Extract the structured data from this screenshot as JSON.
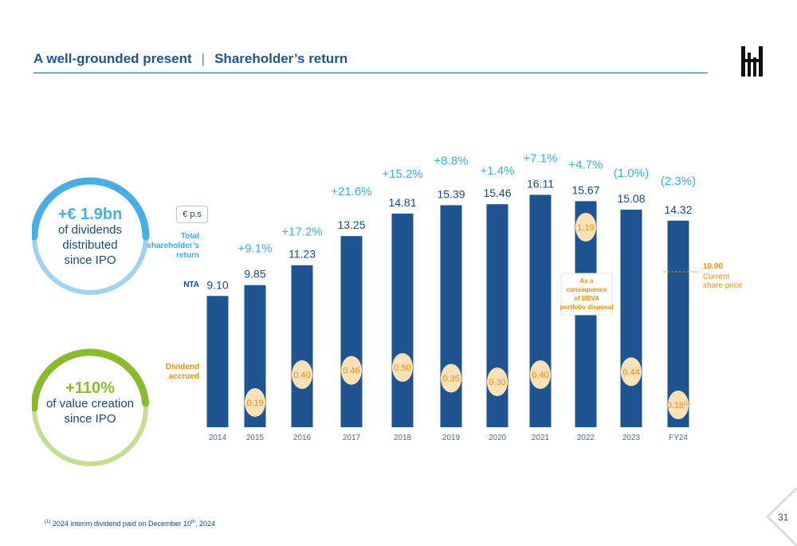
{
  "header": {
    "title": "A well-grounded present",
    "separator": "|",
    "subtitle": "Shareholder’s return"
  },
  "circles": [
    {
      "big": "+€ 1.9bn",
      "lines": [
        "of dividends",
        "distributed",
        "since IPO"
      ],
      "color": "#4aaee3",
      "light": "#9fd3f1"
    },
    {
      "big": "+110%",
      "lines": [
        "of value creation",
        "since IPO"
      ],
      "color": "#8cba2e",
      "light": "#c6de93"
    }
  ],
  "labels": {
    "unit": "€ p.s",
    "total_return": [
      "Total",
      "shareholder’s",
      "return"
    ],
    "nta": "NTA",
    "dividend": [
      "Dividend",
      "accrued"
    ],
    "annotation": [
      "As a",
      "consequence",
      "of BBVA",
      "portfolio disposal"
    ],
    "share_price_value": "10.00",
    "share_price_text": [
      "Current",
      "share price"
    ]
  },
  "colors": {
    "bar": "#1e5591",
    "bubble": "#fbe1b8",
    "bubble_text": "#e8900b",
    "growth": "#39aee0",
    "nta_text": "#1a4a7a",
    "orange": "#e8900b"
  },
  "chart_data": {
    "type": "bar",
    "categories": [
      "2014",
      "2015",
      "2016",
      "2017",
      "2018",
      "2019",
      "2020",
      "2021",
      "2022",
      "2023",
      "FY24"
    ],
    "series": [
      {
        "name": "NTA",
        "values": [
          9.1,
          9.85,
          11.23,
          13.25,
          14.81,
          15.39,
          15.46,
          16.11,
          15.67,
          15.08,
          14.32
        ]
      }
    ],
    "nta_labels": [
      "9.10",
      "9.85",
      "11.23",
      "13.25",
      "14.81",
      "15.39",
      "15.46",
      "16.11",
      "15.67",
      "15.08",
      "14.32"
    ],
    "dividends": [
      "",
      "0.19",
      "0.40",
      "0.46",
      "0.50",
      "0.35",
      "0.30",
      "0.40",
      "1.19",
      "0.44",
      "0.18"
    ],
    "dividend_superscript": [
      "",
      "",
      "",
      "",
      "",
      "",
      "",
      "",
      "",
      "",
      "(1)"
    ],
    "total_return": [
      "",
      "+9.1%",
      "+17.2%",
      "+21.6%",
      "+15.2%",
      "+8.8%",
      "+1.4%",
      "+7.1%",
      "+4.7%",
      "(1.0%)",
      "(2.3%)"
    ],
    "reference_line": {
      "value": 10.0
    },
    "ylim": [
      0,
      16.11
    ]
  },
  "footnote": {
    "marker": "(1)",
    "text": "2024 interim dividend paid on December 10",
    "sup": "th",
    "tail": ", 2024"
  },
  "page_number": "31"
}
